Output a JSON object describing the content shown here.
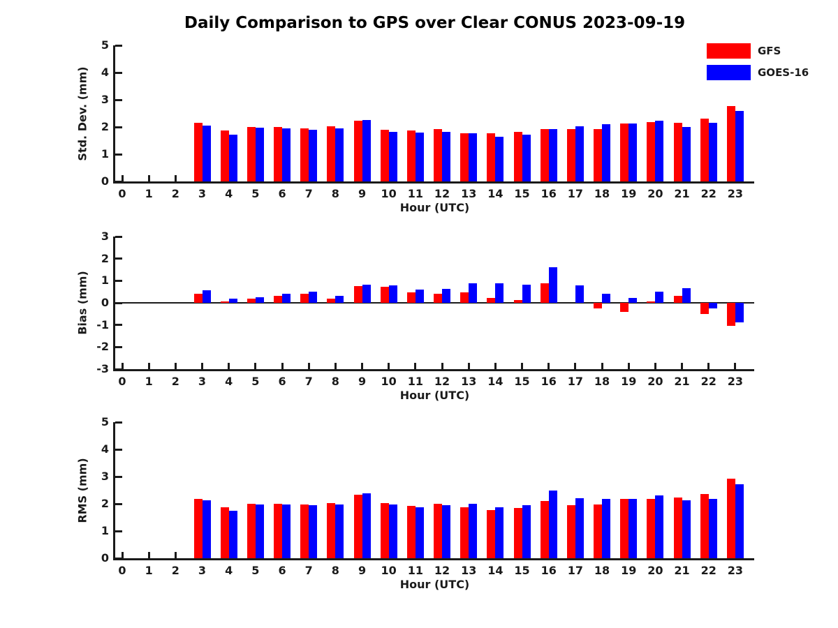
{
  "title": "Daily Comparison to GPS over Clear CONUS 2023-09-19",
  "legend": [
    {
      "label": "GFS",
      "color": "#ff0000"
    },
    {
      "label": "GOES-16",
      "color": "#0000ff"
    }
  ],
  "chart_data": [
    {
      "type": "bar",
      "name": "std-dev",
      "ylabel": "Std. Dev. (mm)",
      "xlabel": "Hour (UTC)",
      "ylim": [
        0,
        5
      ],
      "yticks": [
        0,
        1,
        2,
        3,
        4,
        5
      ],
      "grid": false,
      "legend_position": "upper-right-outside",
      "categories": [
        "0",
        "1",
        "2",
        "3",
        "4",
        "5",
        "6",
        "7",
        "8",
        "9",
        "10",
        "11",
        "12",
        "13",
        "14",
        "15",
        "16",
        "17",
        "18",
        "19",
        "20",
        "21",
        "22",
        "23"
      ],
      "series": [
        {
          "name": "GFS",
          "color": "#ff0000",
          "values": [
            null,
            null,
            null,
            2.15,
            1.88,
            2.0,
            2.0,
            1.95,
            2.02,
            2.22,
            1.9,
            1.88,
            1.92,
            1.77,
            1.78,
            1.81,
            1.92,
            1.92,
            1.92,
            2.12,
            2.17,
            2.16,
            2.3,
            2.76
          ]
        },
        {
          "name": "GOES-16",
          "color": "#0000ff",
          "values": [
            null,
            null,
            null,
            2.05,
            1.73,
            1.97,
            1.95,
            1.9,
            1.96,
            2.25,
            1.82,
            1.79,
            1.83,
            1.77,
            1.63,
            1.73,
            1.92,
            2.03,
            2.1,
            2.14,
            2.22,
            2.0,
            2.15,
            2.6
          ]
        }
      ]
    },
    {
      "type": "bar",
      "name": "bias",
      "ylabel": "Bias (mm)",
      "xlabel": "Hour (UTC)",
      "ylim": [
        -3,
        3
      ],
      "yticks": [
        3,
        2,
        1,
        0,
        -1,
        -2,
        -3
      ],
      "grid": false,
      "categories": [
        "0",
        "1",
        "2",
        "3",
        "4",
        "5",
        "6",
        "7",
        "8",
        "9",
        "10",
        "11",
        "12",
        "13",
        "14",
        "15",
        "16",
        "17",
        "18",
        "19",
        "20",
        "21",
        "22",
        "23"
      ],
      "series": [
        {
          "name": "GFS",
          "color": "#ff0000",
          "values": [
            null,
            null,
            null,
            0.4,
            0.05,
            0.2,
            0.32,
            0.42,
            0.2,
            0.77,
            0.73,
            0.46,
            0.41,
            0.48,
            0.22,
            0.12,
            0.89,
            0.0,
            -0.26,
            -0.4,
            0.07,
            0.33,
            -0.52,
            -1.03
          ]
        },
        {
          "name": "GOES-16",
          "color": "#0000ff",
          "values": [
            null,
            null,
            null,
            0.57,
            0.19,
            0.25,
            0.41,
            0.51,
            0.32,
            0.81,
            0.78,
            0.6,
            0.63,
            0.9,
            0.9,
            0.81,
            1.6,
            0.78,
            0.42,
            0.21,
            0.49,
            0.66,
            -0.26,
            -0.87
          ]
        }
      ]
    },
    {
      "type": "bar",
      "name": "rms",
      "ylabel": "RMS (mm)",
      "xlabel": "Hour (UTC)",
      "ylim": [
        0,
        5
      ],
      "yticks": [
        0,
        1,
        2,
        3,
        4,
        5
      ],
      "grid": false,
      "categories": [
        "0",
        "1",
        "2",
        "3",
        "4",
        "5",
        "6",
        "7",
        "8",
        "9",
        "10",
        "11",
        "12",
        "13",
        "14",
        "15",
        "16",
        "17",
        "18",
        "19",
        "20",
        "21",
        "22",
        "23"
      ],
      "series": [
        {
          "name": "GFS",
          "color": "#ff0000",
          "values": [
            null,
            null,
            null,
            2.18,
            1.88,
            2.0,
            2.0,
            1.97,
            2.03,
            2.33,
            2.02,
            1.93,
            1.99,
            1.86,
            1.78,
            1.84,
            2.11,
            1.94,
            1.97,
            2.17,
            2.17,
            2.22,
            2.36,
            2.92
          ]
        },
        {
          "name": "GOES-16",
          "color": "#0000ff",
          "values": [
            null,
            null,
            null,
            2.13,
            1.75,
            1.97,
            1.97,
            1.94,
            1.97,
            2.39,
            1.97,
            1.87,
            1.94,
            1.99,
            1.88,
            1.96,
            2.49,
            2.2,
            2.17,
            2.17,
            2.3,
            2.12,
            2.17,
            2.71
          ]
        }
      ]
    }
  ]
}
